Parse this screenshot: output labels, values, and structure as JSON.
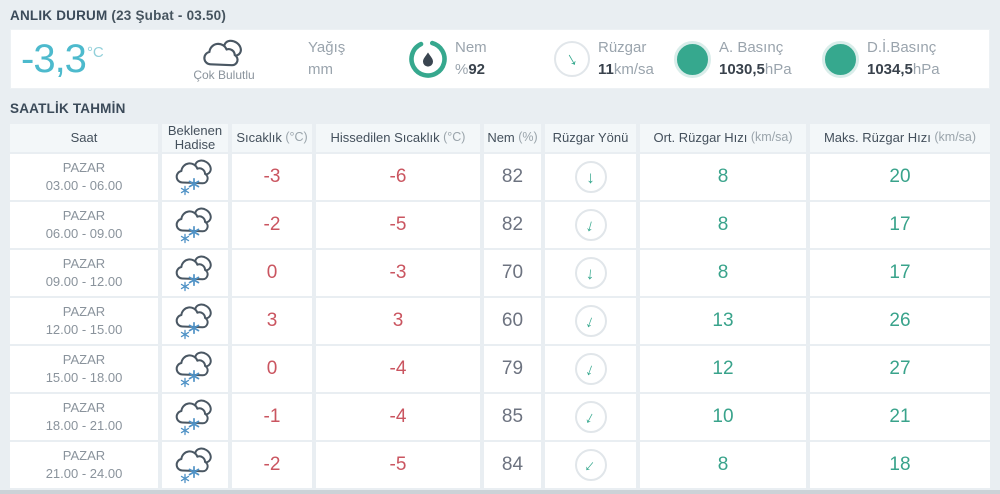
{
  "colors": {
    "accent_teal": "#36a88e",
    "accent_cyan": "#4dbacd",
    "temp_red": "#ca5560",
    "humidity_gray": "#6d7380",
    "snowflake_blue": "#4f92c6",
    "background": "#e9eef2"
  },
  "icons": {
    "wind_arrow": "↓"
  },
  "current": {
    "section_title": "ANLIK DURUM",
    "section_subtitle": "(23 Şubat - 03.50)",
    "temperature": "-3,3",
    "temperature_unit": "°C",
    "condition": "Çok Bulutlu",
    "precipitation_label": "Yağış",
    "precipitation_unit": "mm",
    "humidity_label": "Nem",
    "humidity_unit": "%",
    "humidity_value": "92",
    "wind_label": "Rüzgar",
    "wind_value": "11",
    "wind_unit": "km/sa",
    "wind_dir_deg": -30,
    "pressure_label": "A. Basınç",
    "pressure_value": "1030,5",
    "pressure_unit": "hPa",
    "sea_pressure_label": "D.İ.Basınç",
    "sea_pressure_value": "1034,5",
    "sea_pressure_unit": "hPa"
  },
  "hourly": {
    "section_title": "SAATLİK TAHMİN",
    "columns": [
      {
        "label": "Saat",
        "unit": ""
      },
      {
        "label": "Beklenen Hadise",
        "unit": ""
      },
      {
        "label": "Sıcaklık",
        "unit": "(°C)"
      },
      {
        "label": "Hissedilen Sıcaklık",
        "unit": "(°C)"
      },
      {
        "label": "Nem",
        "unit": "(%)"
      },
      {
        "label": "Rüzgar Yönü",
        "unit": ""
      },
      {
        "label": "Ort. Rüzgar Hızı",
        "unit": "(km/sa)"
      },
      {
        "label": "Maks. Rüzgar Hızı",
        "unit": "(km/sa)"
      }
    ],
    "rows": [
      {
        "day": "PAZAR",
        "time": "03.00 - 06.00",
        "condition": "kar-yağışlı-bulut",
        "temp": "-3",
        "feels": "-6",
        "humidity": "82",
        "wind_dir_deg": 0,
        "avg_wind": "8",
        "max_wind": "20"
      },
      {
        "day": "PAZAR",
        "time": "06.00 - 09.00",
        "condition": "kar-yağışlı-bulut",
        "temp": "-2",
        "feels": "-5",
        "humidity": "82",
        "wind_dir_deg": 15,
        "avg_wind": "8",
        "max_wind": "17"
      },
      {
        "day": "PAZAR",
        "time": "09.00 - 12.00",
        "condition": "kar-yağışlı-bulut",
        "temp": "0",
        "feels": "-3",
        "humidity": "70",
        "wind_dir_deg": 5,
        "avg_wind": "8",
        "max_wind": "17"
      },
      {
        "day": "PAZAR",
        "time": "12.00 - 15.00",
        "condition": "kar-yağışlı-bulut",
        "temp": "3",
        "feels": "3",
        "humidity": "60",
        "wind_dir_deg": 20,
        "avg_wind": "13",
        "max_wind": "26"
      },
      {
        "day": "PAZAR",
        "time": "15.00 - 18.00",
        "condition": "kar-yağışlı-bulut",
        "temp": "0",
        "feels": "-4",
        "humidity": "79",
        "wind_dir_deg": 20,
        "avg_wind": "12",
        "max_wind": "27"
      },
      {
        "day": "PAZAR",
        "time": "18.00 - 21.00",
        "condition": "kar-yağışlı-bulut",
        "temp": "-1",
        "feels": "-4",
        "humidity": "85",
        "wind_dir_deg": 28,
        "avg_wind": "10",
        "max_wind": "21"
      },
      {
        "day": "PAZAR",
        "time": "21.00 - 24.00",
        "condition": "kar-yağışlı-bulut",
        "temp": "-2",
        "feels": "-5",
        "humidity": "84",
        "wind_dir_deg": 40,
        "avg_wind": "8",
        "max_wind": "18"
      }
    ]
  }
}
